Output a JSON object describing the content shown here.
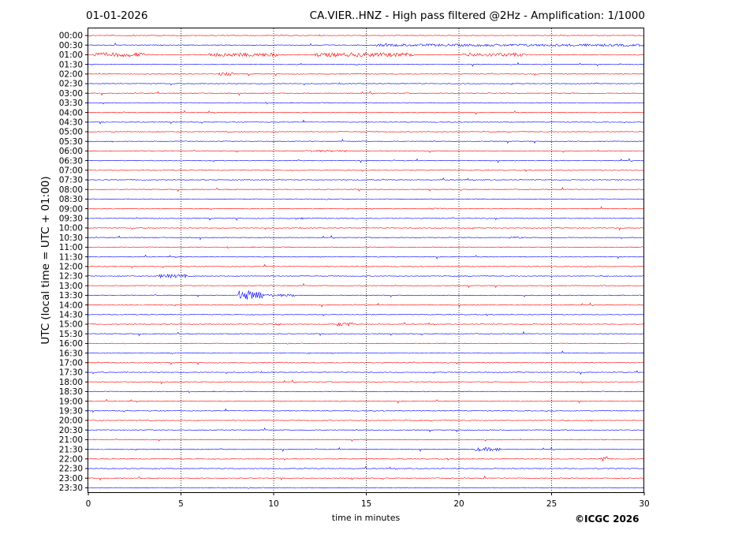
{
  "header": {
    "date": "01-01-2026",
    "title": "CA.VIER..HNZ - High pass filtered @2Hz - Amplification: 1/1000"
  },
  "footer": {
    "credit": "©ICGC 2026"
  },
  "chart_data": {
    "type": "line",
    "title": "CA.VIER..HNZ - High pass filtered @2Hz - Amplification: 1/1000",
    "xlabel": "time in minutes",
    "ylabel": "UTC (local time = UTC + 01:00)",
    "xlim": [
      0,
      30
    ],
    "xticks": [
      "0",
      "5",
      "10",
      "15",
      "20",
      "25",
      "30"
    ],
    "vertical_gridlines_at": [
      5,
      10,
      15,
      20,
      25
    ],
    "yticks": [
      "00:00",
      "00:30",
      "01:00",
      "01:30",
      "02:00",
      "02:30",
      "03:00",
      "03:30",
      "04:00",
      "04:30",
      "05:00",
      "05:30",
      "06:00",
      "06:30",
      "07:00",
      "07:30",
      "08:00",
      "08:30",
      "09:00",
      "09:30",
      "10:00",
      "10:30",
      "11:00",
      "11:30",
      "12:00",
      "12:30",
      "13:00",
      "13:30",
      "14:00",
      "14:30",
      "15:00",
      "15:30",
      "16:00",
      "16:30",
      "17:00",
      "17:30",
      "18:00",
      "18:30",
      "19:00",
      "19:30",
      "20:00",
      "20:30",
      "21:00",
      "21:30",
      "22:00",
      "22:30",
      "23:00",
      "23:30"
    ],
    "trace_colors": [
      "#ff0000",
      "#0000ff"
    ],
    "events": [
      {
        "row": 1,
        "start": 15.5,
        "end": 30,
        "amp": 0.2
      },
      {
        "row": 2,
        "start": 0.2,
        "end": 3.0,
        "amp": 0.35
      },
      {
        "row": 2,
        "start": 6.5,
        "end": 10.2,
        "amp": 0.3
      },
      {
        "row": 2,
        "start": 12.2,
        "end": 17.6,
        "amp": 0.35
      },
      {
        "row": 2,
        "start": 20.2,
        "end": 23.6,
        "amp": 0.3
      },
      {
        "row": 4,
        "start": 7.0,
        "end": 7.8,
        "amp": 0.25
      },
      {
        "row": 12,
        "start": 11.7,
        "end": 14.0,
        "amp": 0.15
      },
      {
        "row": 18,
        "start": 18.2,
        "end": 19.2,
        "amp": 0.12
      },
      {
        "row": 19,
        "start": 11.0,
        "end": 11.6,
        "amp": 0.15
      },
      {
        "row": 21,
        "start": 22.6,
        "end": 23.5,
        "amp": 0.15
      },
      {
        "row": 25,
        "start": 3.8,
        "end": 5.3,
        "amp": 0.3
      },
      {
        "row": 27,
        "start": 8.1,
        "end": 9.4,
        "amp": 0.8
      },
      {
        "row": 27,
        "start": 9.4,
        "end": 11.2,
        "amp": 0.2
      },
      {
        "row": 30,
        "start": 9.8,
        "end": 10.4,
        "amp": 0.2
      },
      {
        "row": 30,
        "start": 13.4,
        "end": 14.3,
        "amp": 0.3
      },
      {
        "row": 43,
        "start": 20.8,
        "end": 22.2,
        "amp": 0.3
      },
      {
        "row": 44,
        "start": 27.6,
        "end": 28.0,
        "amp": 0.55
      }
    ]
  }
}
